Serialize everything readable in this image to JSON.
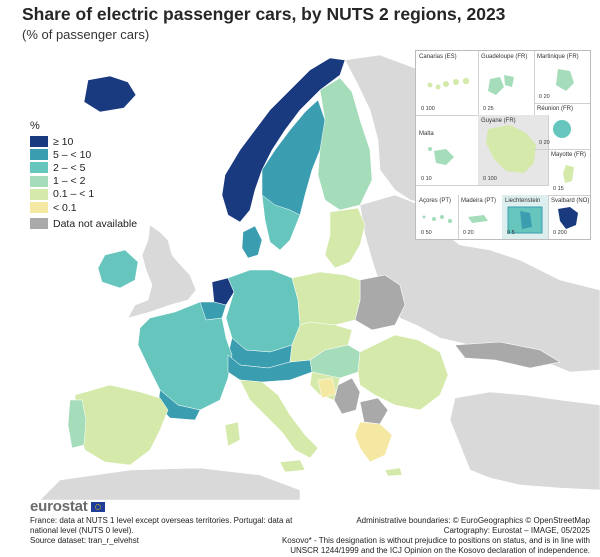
{
  "title": "Share of electric passenger cars, by NUTS 2 regions, 2023",
  "subtitle": "(% of passenger cars)",
  "legend": {
    "unit": "%",
    "classes": [
      {
        "label": "≥ 10",
        "color": "#1a3a80"
      },
      {
        "label": "5 – < 10",
        "color": "#3b9eb0"
      },
      {
        "label": "2 – < 5",
        "color": "#66c6bd"
      },
      {
        "label": "1 – < 2",
        "color": "#a5dcba"
      },
      {
        "label": "0.1 – < 1",
        "color": "#d5eaaa"
      },
      {
        "label": "< 0.1",
        "color": "#f5e8a3"
      }
    ],
    "not_available": {
      "label": "Data not available",
      "color": "#a9a9a9"
    }
  },
  "colors": {
    "sea": "#ffffff",
    "non_eu_land": "#d9d9d9",
    "border": "#ffffff"
  },
  "insets": [
    {
      "label": "Canarias (ES)",
      "scale": "0   100"
    },
    {
      "label": "Guadeloupe (FR)",
      "scale": "0   25"
    },
    {
      "label": "Martinique (FR)",
      "scale": "0   20"
    },
    {
      "label": "Réunion (FR)",
      "scale": "0   20"
    },
    {
      "label": "Malta",
      "scale": "0   10"
    },
    {
      "label": "Guyane (FR)",
      "scale": "0   100"
    },
    {
      "label": "Mayotte (FR)",
      "scale": "0   15"
    },
    {
      "label": "Açores (PT)",
      "scale": "0   50"
    },
    {
      "label": "Madeira (PT)",
      "scale": "0   20"
    },
    {
      "label": "Liechtenstein",
      "scale": "0   5"
    },
    {
      "label": "Svalbard (NO)",
      "scale": "0   200"
    }
  ],
  "brand": "eurostat",
  "notes": {
    "left_line1": "France: data at NUTS 1 level except overseas territories. Portugal: data at",
    "left_line2": "national level (NUTS 0 level).",
    "left_line3": "Source dataset: tran_r_elvehst",
    "right_line1": "Administrative boundaries: © EuroGeographics © OpenStreetMap",
    "right_line2": "Cartography: Eurostat – IMAGE, 05/2025",
    "right_line3": "Kosovo* - This designation is without prejudice to positions on status, and is in line with",
    "right_line4": "UNSCR 1244/1999 and the ICJ Opinion on the Kosovo declaration of independence."
  }
}
